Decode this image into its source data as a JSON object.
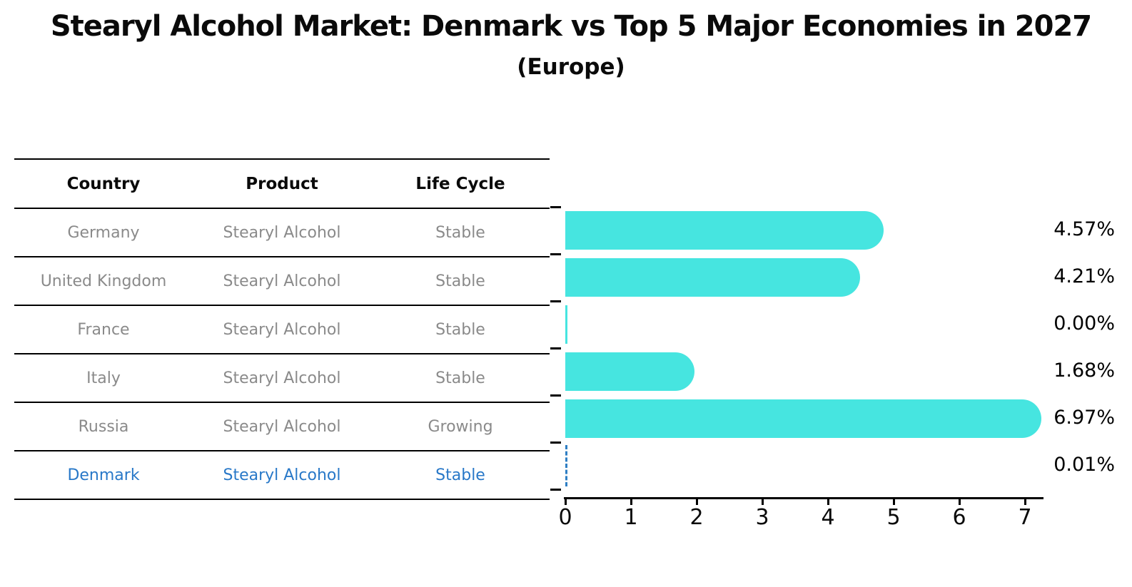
{
  "title": "Stearyl Alcohol Market: Denmark vs Top 5 Major Economies in 2027",
  "subtitle": "(Europe)",
  "table": {
    "headers": [
      "Country",
      "Product",
      "Life Cycle"
    ],
    "rows": [
      {
        "country": "Germany",
        "product": "Stearyl Alcohol",
        "life_cycle": "Stable"
      },
      {
        "country": "United Kingdom",
        "product": "Stearyl Alcohol",
        "life_cycle": "Stable"
      },
      {
        "country": "France",
        "product": "Stearyl Alcohol",
        "life_cycle": "Stable"
      },
      {
        "country": "Italy",
        "product": "Stearyl Alcohol",
        "life_cycle": "Stable"
      },
      {
        "country": "Russia",
        "product": "Stearyl Alcohol",
        "life_cycle": "Growing"
      },
      {
        "country": "Denmark",
        "product": "Stearyl Alcohol",
        "life_cycle": "Stable"
      }
    ],
    "highlight_row": "Denmark"
  },
  "chart_data": {
    "type": "bar",
    "orientation": "horizontal",
    "title": "Stearyl Alcohol Market: Denmark vs Top 5 Major Economies in 2027",
    "subtitle": "(Europe)",
    "categories": [
      "Germany",
      "United Kingdom",
      "France",
      "Italy",
      "Russia",
      "Denmark"
    ],
    "values": [
      4.57,
      4.21,
      0.0,
      1.68,
      6.97,
      0.01
    ],
    "value_labels": [
      "4.57%",
      "4.21%",
      "0.00%",
      "1.68%",
      "6.97%",
      "0.01%"
    ],
    "unit": "%",
    "x_ticks": [
      "0",
      "1",
      "2",
      "3",
      "4",
      "5",
      "6",
      "7"
    ],
    "xlim": [
      0,
      7.3
    ],
    "grid": false,
    "legend": false,
    "bar_color": "#46E5E0",
    "highlight_index": 5,
    "highlight_color": "#2F7FC4",
    "value_label_color": "#000000",
    "table_text_color": "#8A8A8A",
    "highlight_text_color": "#2878C8"
  }
}
